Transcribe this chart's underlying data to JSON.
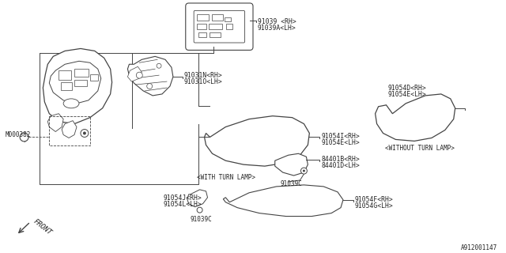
{
  "bg_color": "#ffffff",
  "line_color": "#444444",
  "text_color": "#222222",
  "fig_id": "A912001147",
  "labels": {
    "top_mirror": [
      "91039 <RH>",
      "91039A<LH>"
    ],
    "inner_parts": [
      "91031N<RH>",
      "91031O<LH>"
    ],
    "bolt": "M000382",
    "with_turn_lamp": "<WITH TURN LAMP>",
    "without_turn_lamp": "<WITHOUT TURN LAMP>",
    "outer_cover_wt": [
      "91054D<RH>",
      "91054E<LH>"
    ],
    "turn_lamp_upper": [
      "91054I<RH>",
      "91054E<LH>"
    ],
    "turn_lamp_bracket": [
      "84401B<RH>",
      "84401D<LH>"
    ],
    "screw_c1": "91039C",
    "lower_bracket_label": [
      "91054J<RH>",
      "91054L<LH>"
    ],
    "lower_screw": "91039C",
    "lower_cover": [
      "91054F<RH>",
      "91054G<LH>"
    ],
    "front": "FRONT"
  }
}
